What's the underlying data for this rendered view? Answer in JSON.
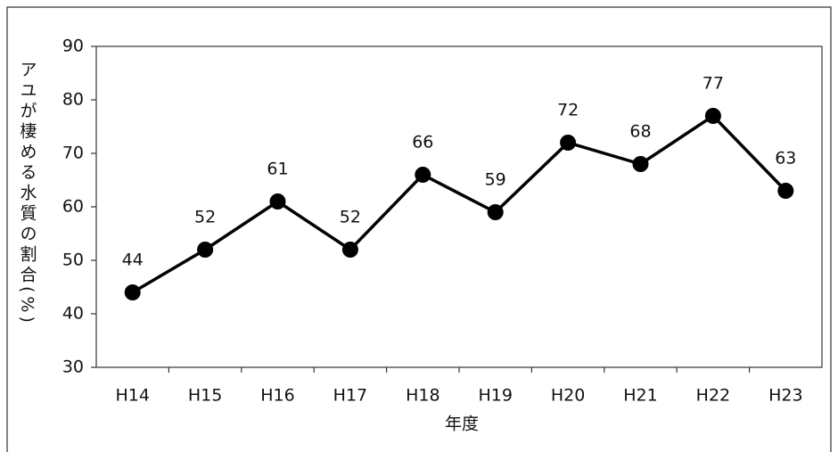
{
  "chart_data": {
    "type": "line",
    "y_label": "アユが棲める水質の割合(%)",
    "x_label": "年度",
    "categories": [
      "H14",
      "H15",
      "H16",
      "H17",
      "H18",
      "H19",
      "H20",
      "H21",
      "H22",
      "H23"
    ],
    "values": [
      44,
      52,
      61,
      52,
      66,
      59,
      72,
      68,
      77,
      63
    ],
    "color": "#000000",
    "ylim": [
      30,
      90
    ],
    "yticks": [
      30,
      40,
      50,
      60,
      70,
      80,
      90
    ],
    "grid": false
  }
}
